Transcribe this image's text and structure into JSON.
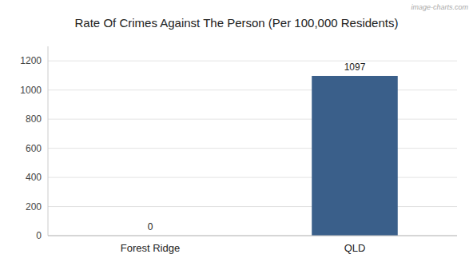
{
  "chart_data": {
    "type": "bar",
    "title": "Rate Of Crimes Against The Person (Per 100,000 Residents)",
    "categories": [
      "Forest Ridge",
      "QLD"
    ],
    "values": [
      0,
      1097
    ],
    "color": "#3a5f8a",
    "ylim": [
      0,
      1300
    ],
    "yticks": [
      0,
      200,
      400,
      600,
      800,
      1000,
      1200
    ],
    "grid": true,
    "data_labels": true,
    "annotations": [
      "image-charts.com"
    ]
  }
}
